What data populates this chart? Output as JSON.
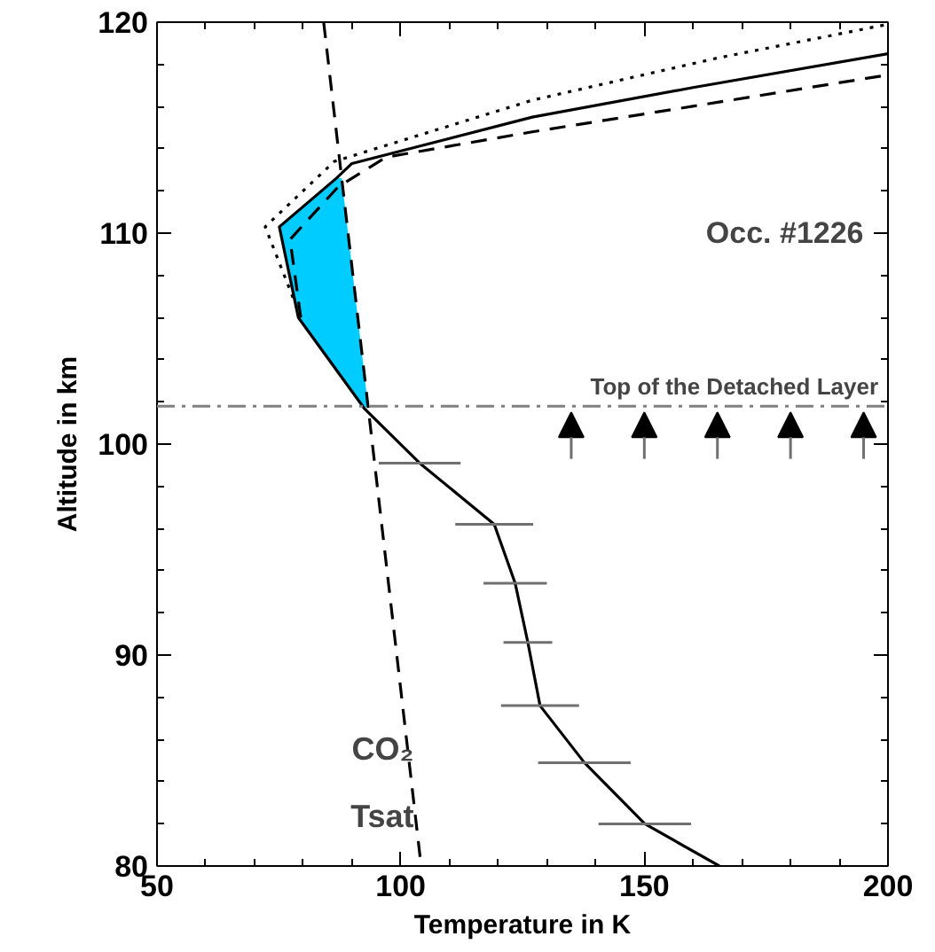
{
  "chart_data": {
    "type": "line",
    "xlabel": "Temperature in K",
    "ylabel": "Altitude in km",
    "xlim": [
      50,
      200
    ],
    "ylim": [
      80,
      120
    ],
    "xticks": [
      50,
      100,
      150,
      200
    ],
    "yticks": [
      80,
      90,
      100,
      110,
      120
    ],
    "grid": false,
    "marker": "none",
    "series": [
      {
        "type": "area",
        "color": "#00ccff",
        "x": [
          92.5,
          79,
          75.1,
          86.8,
          87.9,
          93.3
        ],
        "values": [
          101.7,
          106,
          110.3,
          112.6,
          112.6,
          101.8
        ]
      },
      {
        "color": "#000000",
        "line_style": "solid",
        "x": [
          165.4,
          150.1,
          137.7,
          128.6,
          126.1,
          123.5,
          119.2,
          103.9,
          92.5,
          79,
          75.1,
          86.8,
          90,
          127,
          160,
          200
        ],
        "values": [
          80,
          82,
          84.9,
          87.6,
          90.6,
          93.4,
          96.2,
          99.1,
          101.7,
          106,
          110.3,
          112.6,
          113.3,
          115.5,
          116.9,
          118.5
        ],
        "xerrors": [
          null,
          9.5,
          9.5,
          8,
          5,
          6.5,
          8,
          8.4,
          null,
          null,
          null,
          null,
          null,
          null,
          null,
          null
        ]
      },
      {
        "color": "#000000",
        "line_style": "dotted",
        "x": [
          79.5,
          72.2,
          86.4,
          127,
          165,
          200
        ],
        "values": [
          106,
          110.3,
          113.4,
          116.3,
          118.3,
          119.9
        ]
      },
      {
        "color": "#000000",
        "line_style": "dashed",
        "x": [
          79.5,
          77.3,
          87.2,
          97,
          127,
          165,
          200
        ],
        "values": [
          106,
          109.7,
          112.2,
          113.6,
          114.8,
          116.2,
          117.5
        ]
      },
      {
        "name": "CO₂\nTsat",
        "color": "#000000",
        "line_style": "dashed",
        "x": [
          84.2,
          104.2
        ],
        "values": [
          120,
          80
        ]
      },
      {
        "type": "scatter",
        "marker": "triangle",
        "color": "#000000",
        "x": [
          135,
          150,
          165,
          180,
          195
        ],
        "values": [
          101.0,
          101.0,
          101.0,
          101.0,
          101.0
        ]
      }
    ],
    "ref_lines": [
      {
        "axis": "y",
        "value": 101.8,
        "label": "Top of the Detached Layer",
        "color": "#808080",
        "line_style": "dashdot"
      }
    ],
    "annotations": [
      "Occ. #1226"
    ]
  }
}
